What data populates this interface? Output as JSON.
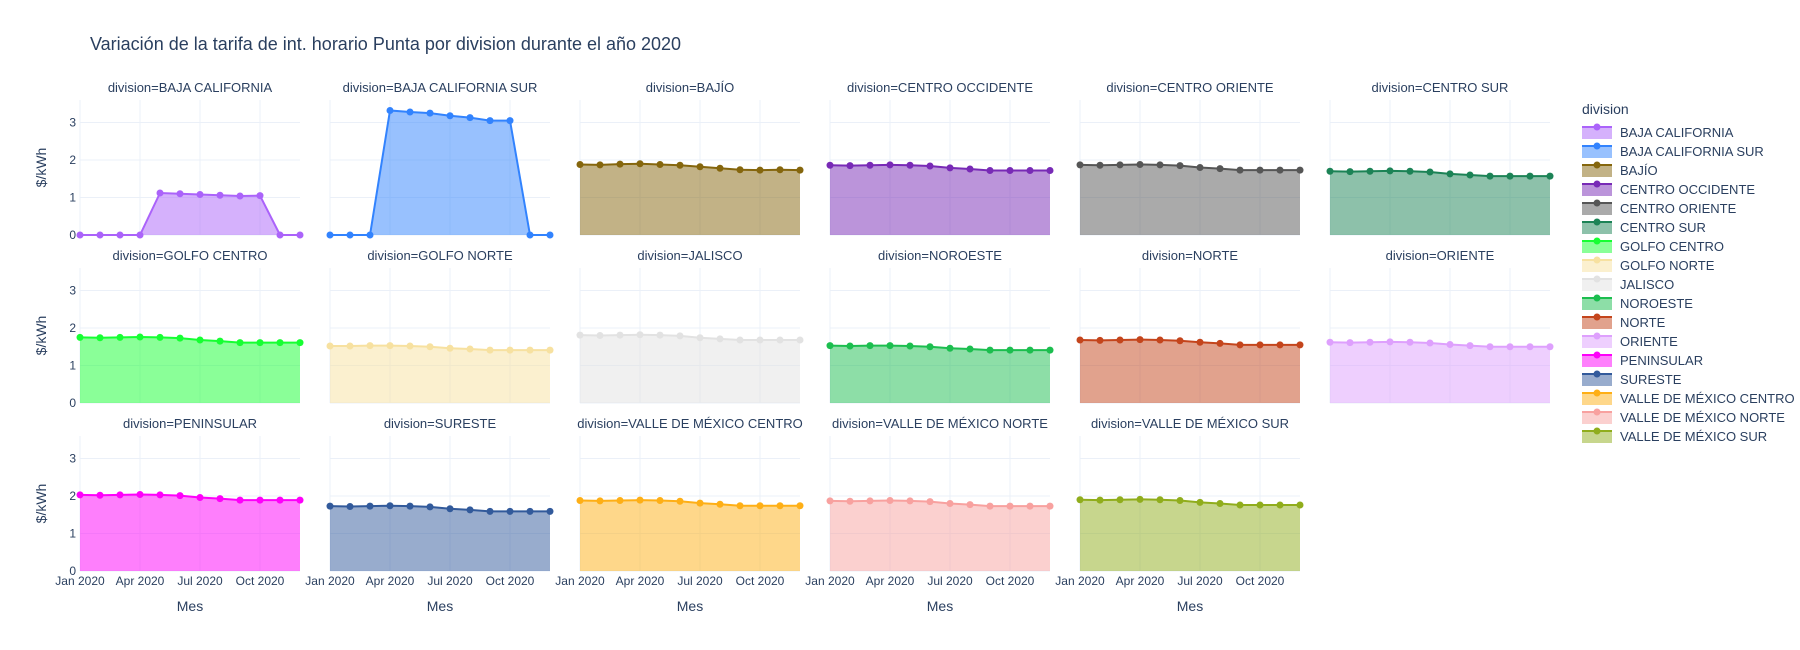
{
  "chart_data": {
    "type": "area",
    "title": "Variación de la tarifa de int. horario Punta por division durante el año 2020",
    "xlabel": "Mes",
    "ylabel": "$/kWh",
    "ylim": [
      0,
      3.6
    ],
    "yticks": [
      "0",
      "1",
      "2",
      "3"
    ],
    "ytick_values": [
      0,
      1,
      2,
      3
    ],
    "xticks": [
      "Jan 2020",
      "Apr 2020",
      "Jul 2020",
      "Oct 2020"
    ],
    "xtick_values": [
      "2020-01",
      "2020-04",
      "2020-07",
      "2020-10"
    ],
    "x": [
      "2020-01",
      "2020-02",
      "2020-03",
      "2020-04",
      "2020-05",
      "2020-06",
      "2020-07",
      "2020-08",
      "2020-09",
      "2020-10",
      "2020-11",
      "2020-12"
    ],
    "grid": true,
    "legend_title": "division",
    "legend_position": "right",
    "facet_prefix": "division=",
    "series": [
      {
        "name": "BAJA CALIFORNIA",
        "color": "#AB63FA",
        "values": [
          0,
          0,
          0,
          0,
          1.12,
          1.1,
          1.08,
          1.06,
          1.04,
          1.05,
          0,
          0
        ]
      },
      {
        "name": "BAJA CALIFORNIA SUR",
        "color": "#3283FE",
        "values": [
          0,
          0,
          0,
          3.32,
          3.28,
          3.25,
          3.18,
          3.13,
          3.05,
          3.05,
          0,
          0
        ]
      },
      {
        "name": "BAJÍO",
        "color": "#85660D",
        "values": [
          1.88,
          1.87,
          1.89,
          1.9,
          1.88,
          1.86,
          1.82,
          1.78,
          1.74,
          1.73,
          1.74,
          1.73
        ]
      },
      {
        "name": "CENTRO OCCIDENTE",
        "color": "#782AB6",
        "values": [
          1.86,
          1.85,
          1.86,
          1.87,
          1.86,
          1.84,
          1.79,
          1.76,
          1.72,
          1.72,
          1.72,
          1.72
        ]
      },
      {
        "name": "CENTRO ORIENTE",
        "color": "#565656",
        "values": [
          1.87,
          1.86,
          1.87,
          1.88,
          1.87,
          1.85,
          1.8,
          1.77,
          1.73,
          1.73,
          1.73,
          1.73
        ]
      },
      {
        "name": "CENTRO SUR",
        "color": "#1C8356",
        "values": [
          1.7,
          1.69,
          1.7,
          1.71,
          1.7,
          1.68,
          1.63,
          1.6,
          1.57,
          1.57,
          1.57,
          1.57
        ]
      },
      {
        "name": "GOLFO CENTRO",
        "color": "#16FF32",
        "values": [
          1.75,
          1.74,
          1.75,
          1.76,
          1.75,
          1.73,
          1.68,
          1.65,
          1.61,
          1.61,
          1.61,
          1.61
        ]
      },
      {
        "name": "GOLFO NORTE",
        "color": "#F7E1A0",
        "values": [
          1.52,
          1.52,
          1.53,
          1.53,
          1.52,
          1.5,
          1.46,
          1.44,
          1.41,
          1.41,
          1.41,
          1.41
        ]
      },
      {
        "name": "JALISCO",
        "color": "#E2E2E2",
        "values": [
          1.81,
          1.8,
          1.81,
          1.82,
          1.81,
          1.79,
          1.74,
          1.71,
          1.68,
          1.68,
          1.68,
          1.68
        ]
      },
      {
        "name": "NOROESTE",
        "color": "#1CBE4F",
        "values": [
          1.53,
          1.52,
          1.53,
          1.53,
          1.52,
          1.5,
          1.46,
          1.44,
          1.41,
          1.41,
          1.41,
          1.41
        ]
      },
      {
        "name": "NORTE",
        "color": "#C4451C",
        "values": [
          1.68,
          1.67,
          1.68,
          1.69,
          1.68,
          1.66,
          1.62,
          1.59,
          1.55,
          1.55,
          1.55,
          1.55
        ]
      },
      {
        "name": "ORIENTE",
        "color": "#DEA0FD",
        "values": [
          1.62,
          1.61,
          1.62,
          1.63,
          1.62,
          1.6,
          1.56,
          1.53,
          1.5,
          1.5,
          1.5,
          1.5
        ]
      },
      {
        "name": "PENINSULAR",
        "color": "#FE00FA",
        "values": [
          2.03,
          2.02,
          2.03,
          2.04,
          2.03,
          2.01,
          1.96,
          1.93,
          1.89,
          1.89,
          1.89,
          1.89
        ]
      },
      {
        "name": "SURESTE",
        "color": "#325A9B",
        "values": [
          1.73,
          1.72,
          1.73,
          1.74,
          1.73,
          1.71,
          1.66,
          1.63,
          1.59,
          1.59,
          1.59,
          1.59
        ]
      },
      {
        "name": "VALLE DE MÉXICO CENTRO",
        "color": "#FEAF16",
        "values": [
          1.88,
          1.87,
          1.88,
          1.89,
          1.88,
          1.86,
          1.81,
          1.78,
          1.74,
          1.74,
          1.74,
          1.74
        ]
      },
      {
        "name": "VALLE DE MÉXICO NORTE",
        "color": "#F8A19F",
        "values": [
          1.87,
          1.86,
          1.87,
          1.88,
          1.87,
          1.85,
          1.8,
          1.77,
          1.73,
          1.73,
          1.73,
          1.73
        ]
      },
      {
        "name": "VALLE DE MÉXICO SUR",
        "color": "#90AD1C",
        "values": [
          1.9,
          1.89,
          1.9,
          1.91,
          1.9,
          1.88,
          1.83,
          1.8,
          1.76,
          1.76,
          1.76,
          1.76
        ]
      }
    ]
  }
}
